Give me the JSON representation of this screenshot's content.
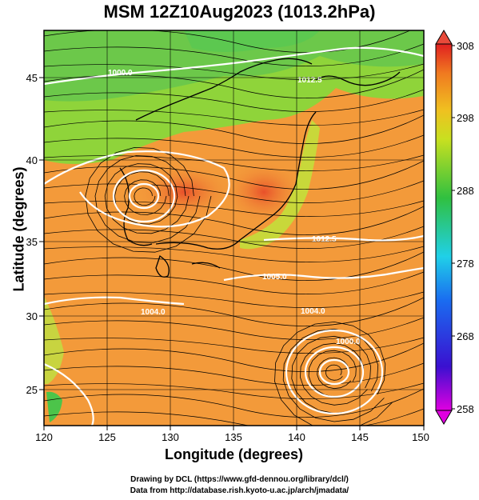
{
  "title": "MSM 12Z10Aug2023 (1013.2hPa)",
  "xlabel": "Longitude (degrees)",
  "ylabel": "Latitude  (degrees)",
  "x_ticks": [
    "120",
    "125",
    "130",
    "135",
    "140",
    "145",
    "150"
  ],
  "y_ticks": [
    "25",
    "30",
    "35",
    "40",
    "45"
  ],
  "colorbar_ticks": [
    "308",
    "298",
    "288",
    "278",
    "268",
    "258"
  ],
  "contour_labels": [
    "1000.0",
    "1012.5",
    "1012.5",
    "1005.0",
    "1004.0",
    "1004.0",
    "1000.0"
  ],
  "credits": {
    "line1": "Drawing by DCL (https://www.gfd-dennou.org/library/dcl/)",
    "line2": "Data from http://database.rish.kyoto-u.ac.jp/arch/jmadata/"
  },
  "colors": {
    "warm": "#f39a3a",
    "hot": "#e0552a",
    "mid": "#a8d43a",
    "cool": "#5fc84a",
    "contour": "#ffffff",
    "streamline": "#000000"
  }
}
